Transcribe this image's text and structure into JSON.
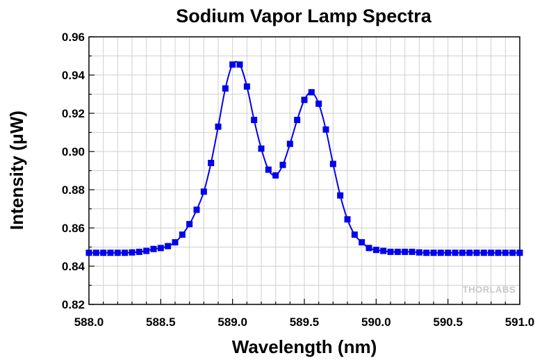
{
  "chart_data": {
    "type": "line",
    "title": "Sodium Vapor Lamp Spectra",
    "xlabel": "Wavelength (nm)",
    "ylabel": "Intensity (μW)",
    "xlim": [
      588.0,
      591.0
    ],
    "ylim": [
      0.82,
      0.96
    ],
    "xticks": [
      "588.0",
      "588.5",
      "589.0",
      "589.5",
      "590.0",
      "590.5",
      "591.0"
    ],
    "yticks": [
      "0.82",
      "0.84",
      "0.86",
      "0.88",
      "0.90",
      "0.92",
      "0.94",
      "0.96"
    ],
    "grid": true,
    "legend": "none",
    "series": [
      {
        "color": "#0000ee",
        "marker": "square",
        "x": [
          588.0,
          588.05,
          588.1,
          588.15,
          588.2,
          588.25,
          588.3,
          588.35,
          588.4,
          588.45,
          588.5,
          588.55,
          588.6,
          588.65,
          588.7,
          588.75,
          588.8,
          588.85,
          588.9,
          588.95,
          589.0,
          589.05,
          589.1,
          589.15,
          589.2,
          589.25,
          589.3,
          589.35,
          589.4,
          589.45,
          589.5,
          589.55,
          589.6,
          589.65,
          589.7,
          589.75,
          589.8,
          589.85,
          589.9,
          589.95,
          590.0,
          590.05,
          590.1,
          590.15,
          590.2,
          590.25,
          590.3,
          590.35,
          590.4,
          590.45,
          590.5,
          590.55,
          590.6,
          590.65,
          590.7,
          590.75,
          590.8,
          590.85,
          590.9,
          590.95,
          591.0
        ],
        "y": [
          0.847,
          0.847,
          0.847,
          0.847,
          0.847,
          0.847,
          0.8472,
          0.8475,
          0.848,
          0.849,
          0.8495,
          0.8505,
          0.8525,
          0.8565,
          0.862,
          0.8695,
          0.879,
          0.894,
          0.913,
          0.933,
          0.9455,
          0.9455,
          0.934,
          0.9165,
          0.9015,
          0.8905,
          0.8875,
          0.893,
          0.904,
          0.9165,
          0.927,
          0.931,
          0.925,
          0.9115,
          0.8935,
          0.877,
          0.8645,
          0.8565,
          0.8525,
          0.8495,
          0.8485,
          0.848,
          0.8475,
          0.8475,
          0.8475,
          0.8475,
          0.8472,
          0.847,
          0.847,
          0.847,
          0.847,
          0.847,
          0.847,
          0.847,
          0.847,
          0.847,
          0.847,
          0.847,
          0.847,
          0.847,
          0.847
        ]
      }
    ]
  },
  "watermark": "THORLABS"
}
